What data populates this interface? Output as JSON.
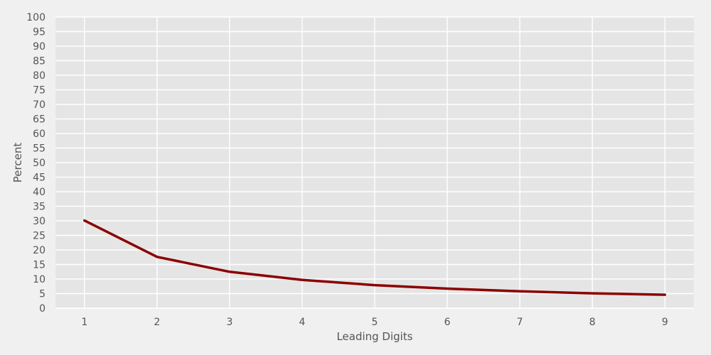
{
  "chart_data": {
    "type": "line",
    "title": "",
    "xlabel": "Leading Digits",
    "ylabel": "Percent",
    "x": [
      1,
      2,
      3,
      4,
      5,
      6,
      7,
      8,
      9
    ],
    "xticks": [
      "1",
      "2",
      "3",
      "4",
      "5",
      "6",
      "7",
      "8",
      "9"
    ],
    "yticks": [
      "0",
      "5",
      "10",
      "15",
      "20",
      "25",
      "30",
      "35",
      "40",
      "45",
      "50",
      "55",
      "60",
      "65",
      "70",
      "75",
      "80",
      "85",
      "90",
      "95",
      "100"
    ],
    "xlim": [
      0.6,
      9.4
    ],
    "ylim": [
      0,
      100
    ],
    "grid": true,
    "series": [
      {
        "values": [
          30.1,
          17.6,
          12.5,
          9.7,
          7.9,
          6.7,
          5.8,
          5.1,
          4.6
        ],
        "color": "#8b0000"
      }
    ]
  },
  "colors": {
    "page_background": "#f0f0f0",
    "plot_background": "#e5e5e5",
    "grid": "#ffffff",
    "text": "#555555"
  }
}
